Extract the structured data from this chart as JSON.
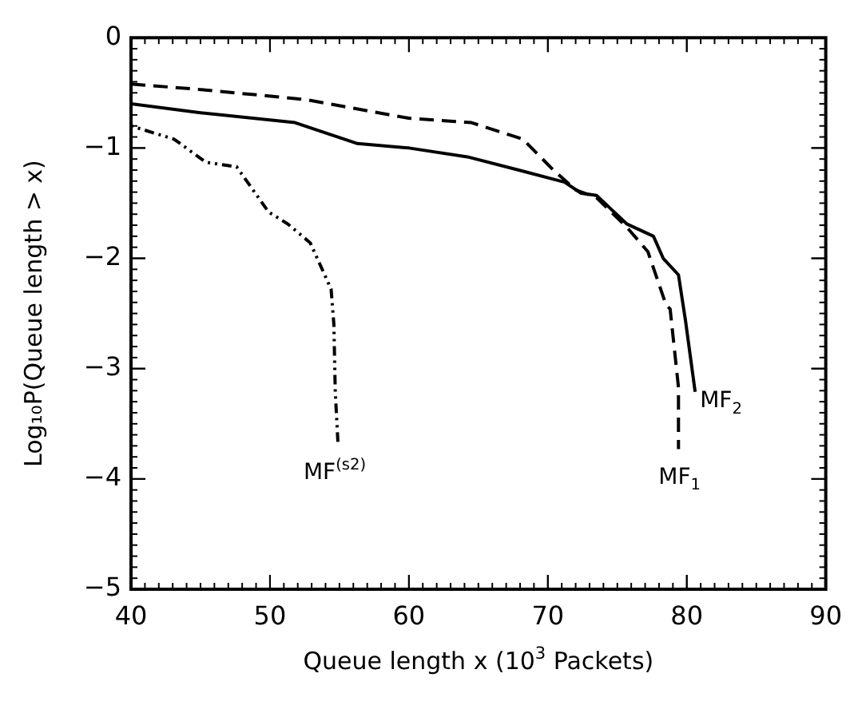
{
  "chart_data": {
    "type": "line",
    "xlabel": "Queue length x (10$^{3}$ Packets)",
    "ylabel": "Log₁₀P(Queue length > x)",
    "xlim": [
      40,
      90
    ],
    "xticks": [
      40,
      50,
      60,
      70,
      80,
      90
    ],
    "ylim": [
      -5,
      0
    ],
    "yticks": [
      -5,
      -4,
      -3,
      -2,
      -1,
      0
    ],
    "grid": false,
    "legend": false,
    "marker": "none",
    "series": [
      {
        "name": "MF$_{1}$",
        "color": "#000000",
        "line_style": "dashed",
        "x": [
          40,
          45,
          52.5,
          60,
          64.5,
          68.2,
          70.4,
          72,
          73.5,
          75.7,
          77.2,
          78.5,
          78.8,
          79.4,
          79.4
        ],
        "values": [
          -0.42,
          -0.47,
          -0.56,
          -0.73,
          -0.77,
          -0.92,
          -1.2,
          -1.38,
          -1.45,
          -1.72,
          -1.94,
          -2.42,
          -2.46,
          -3.17,
          -3.73
        ]
      },
      {
        "name": "MF$_{2}$",
        "color": "#000000",
        "line_style": "solid",
        "x": [
          40,
          45,
          51.8,
          56.3,
          60,
          64.2,
          67.9,
          71.2,
          72.4,
          73.5,
          75.7,
          77.6,
          78.3,
          79.4,
          79.9,
          80.6
        ],
        "values": [
          -0.6,
          -0.68,
          -0.77,
          -0.96,
          -1.0,
          -1.08,
          -1.2,
          -1.31,
          -1.41,
          -1.43,
          -1.69,
          -1.8,
          -2.0,
          -2.15,
          -2.56,
          -3.21
        ]
      },
      {
        "name": "MF$^{(s2)}$",
        "color": "#000000",
        "line_style": "dotted",
        "x": [
          40,
          43.1,
          45.4,
          47.6,
          49.9,
          51.3,
          52.9,
          54.4,
          54.6,
          54.7,
          54.9
        ],
        "values": [
          -0.8,
          -0.92,
          -1.13,
          -1.17,
          -1.58,
          -1.69,
          -1.86,
          -2.28,
          -2.6,
          -3.21,
          -3.69
        ]
      }
    ]
  }
}
